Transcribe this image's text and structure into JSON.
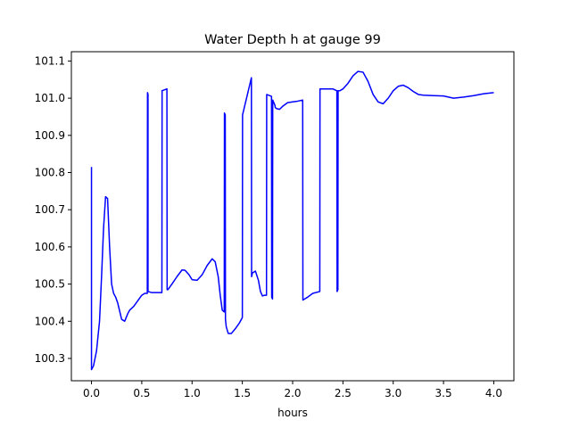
{
  "chart_data": {
    "type": "line",
    "title": "Water Depth h at gauge 99",
    "xlabel": "hours",
    "ylabel": "",
    "xlim": [
      -0.2,
      4.2
    ],
    "ylim": [
      100.24,
      101.125
    ],
    "x_ticks": [
      0.0,
      0.5,
      1.0,
      1.5,
      2.0,
      2.5,
      3.0,
      3.5,
      4.0
    ],
    "x_tick_labels": [
      "0.0",
      "0.5",
      "1.0",
      "1.5",
      "2.0",
      "2.5",
      "3.0",
      "3.5",
      "4.0"
    ],
    "y_ticks": [
      100.3,
      100.4,
      100.5,
      100.6,
      100.7,
      100.8,
      100.9,
      101.0,
      101.1
    ],
    "y_tick_labels": [
      "100.3",
      "100.4",
      "100.5",
      "100.6",
      "100.7",
      "100.8",
      "100.9",
      "101.0",
      "101.1"
    ],
    "grid": false,
    "legend": "none",
    "series": [
      {
        "color": "#0000ff",
        "x": [
          0.0,
          0.0,
          0.02,
          0.05,
          0.08,
          0.1,
          0.12,
          0.14,
          0.16,
          0.18,
          0.2,
          0.22,
          0.24,
          0.26,
          0.3,
          0.33,
          0.36,
          0.38,
          0.42,
          0.46,
          0.5,
          0.53,
          0.555,
          0.557,
          0.562,
          0.562,
          0.6,
          0.7,
          0.702,
          0.7,
          0.75,
          0.752,
          0.76,
          0.8,
          0.85,
          0.9,
          0.93,
          0.97,
          1.0,
          1.05,
          1.1,
          1.15,
          1.2,
          1.23,
          1.26,
          1.28,
          1.3,
          1.32,
          1.322,
          1.33,
          1.332,
          1.34,
          1.36,
          1.39,
          1.43,
          1.47,
          1.5,
          1.502,
          1.59,
          1.592,
          1.6,
          1.63,
          1.66,
          1.68,
          1.7,
          1.72,
          1.74,
          1.742,
          1.79,
          1.792,
          1.8,
          1.802,
          1.825,
          1.827,
          1.84,
          1.87,
          1.9,
          1.95,
          2.0,
          2.05,
          2.1,
          2.102,
          2.12,
          2.15,
          2.2,
          2.27,
          2.272,
          2.35,
          2.4,
          2.44,
          2.442,
          2.45,
          2.452,
          2.47,
          2.5,
          2.55,
          2.6,
          2.65,
          2.7,
          2.75,
          2.8,
          2.85,
          2.9,
          2.95,
          3.0,
          3.05,
          3.1,
          3.15,
          3.2,
          3.25,
          3.3,
          3.4,
          3.5,
          3.6,
          3.7,
          3.8,
          3.9,
          4.0
        ],
        "y": [
          100.815,
          100.27,
          100.28,
          100.32,
          100.4,
          100.52,
          100.65,
          100.735,
          100.73,
          100.6,
          100.5,
          100.475,
          100.465,
          100.45,
          100.405,
          100.4,
          100.42,
          100.43,
          100.44,
          100.455,
          100.47,
          100.475,
          100.475,
          101.015,
          101.01,
          100.48,
          100.477,
          100.477,
          101.02,
          101.02,
          101.025,
          100.485,
          100.485,
          100.5,
          100.52,
          100.538,
          100.537,
          100.525,
          100.512,
          100.51,
          100.525,
          100.55,
          100.568,
          100.56,
          100.52,
          100.47,
          100.43,
          100.425,
          100.96,
          100.955,
          100.405,
          100.385,
          100.367,
          100.367,
          100.38,
          100.395,
          100.41,
          100.955,
          101.055,
          100.52,
          100.53,
          100.535,
          100.51,
          100.48,
          100.468,
          100.47,
          100.47,
          101.01,
          101.005,
          100.465,
          100.46,
          100.995,
          100.98,
          100.975,
          100.972,
          100.97,
          100.978,
          100.988,
          100.99,
          100.992,
          100.995,
          100.457,
          100.46,
          100.465,
          100.475,
          100.48,
          101.025,
          101.025,
          101.025,
          101.02,
          100.48,
          100.485,
          101.02,
          101.02,
          101.025,
          101.04,
          101.06,
          101.072,
          101.07,
          101.045,
          101.01,
          100.99,
          100.985,
          101.0,
          101.02,
          101.032,
          101.035,
          101.028,
          101.018,
          101.01,
          101.008,
          101.007,
          101.006,
          101.0,
          101.003,
          101.007,
          101.012,
          101.015
        ]
      }
    ]
  }
}
